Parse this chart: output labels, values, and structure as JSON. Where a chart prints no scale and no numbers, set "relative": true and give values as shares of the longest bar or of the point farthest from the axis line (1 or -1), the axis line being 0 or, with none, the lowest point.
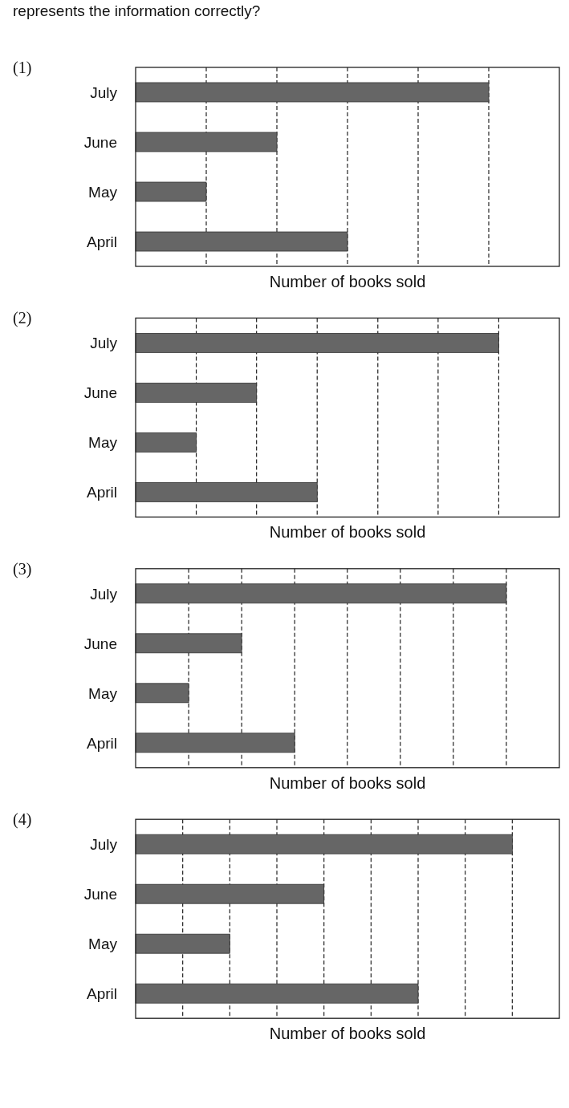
{
  "chart_data": [
    {
      "type": "bar",
      "orientation": "horizontal",
      "relative": true,
      "title": "(1)",
      "annotations": [
        "represents the information correctly?"
      ],
      "xlabel": "Number of books sold",
      "categories": [
        "July",
        "June",
        "May",
        "April"
      ],
      "values": [
        1,
        0.4,
        0.2,
        0.6
      ],
      "color": "#666666",
      "xlim": [
        0,
        1.2
      ],
      "ref_lines": [
        {
          "axis": "x",
          "value": 0.2,
          "line_style": "dashed",
          "color": "#222222"
        },
        {
          "axis": "x",
          "value": 0.4,
          "line_style": "dashed",
          "color": "#222222"
        },
        {
          "axis": "x",
          "value": 0.6,
          "line_style": "dashed",
          "color": "#222222"
        },
        {
          "axis": "x",
          "value": 0.8,
          "line_style": "dashed",
          "color": "#222222"
        },
        {
          "axis": "x",
          "value": 1,
          "line_style": "dashed",
          "color": "#222222"
        }
      ],
      "tick_labels": "y"
    },
    {
      "type": "bar",
      "orientation": "horizontal",
      "relative": true,
      "title": "(2)",
      "xlabel": "Number of books sold",
      "categories": [
        "July",
        "June",
        "May",
        "April"
      ],
      "values": [
        1,
        0.333,
        0.167,
        0.5
      ],
      "color": "#666666",
      "xlim": [
        0,
        1.167
      ],
      "ref_lines": [
        {
          "axis": "x",
          "value": 0.167,
          "line_style": "dashed",
          "color": "#222222"
        },
        {
          "axis": "x",
          "value": 0.333,
          "line_style": "dashed",
          "color": "#222222"
        },
        {
          "axis": "x",
          "value": 0.5,
          "line_style": "dashed",
          "color": "#222222"
        },
        {
          "axis": "x",
          "value": 0.667,
          "line_style": "dashed",
          "color": "#222222"
        },
        {
          "axis": "x",
          "value": 0.833,
          "line_style": "dashed",
          "color": "#222222"
        },
        {
          "axis": "x",
          "value": 1,
          "line_style": "dashed",
          "color": "#222222"
        }
      ],
      "tick_labels": "y"
    },
    {
      "type": "bar",
      "orientation": "horizontal",
      "relative": true,
      "title": "(3)",
      "xlabel": "Number of books sold",
      "categories": [
        "July",
        "June",
        "May",
        "April"
      ],
      "values": [
        1,
        0.286,
        0.143,
        0.429
      ],
      "color": "#666666",
      "xlim": [
        0,
        1.143
      ],
      "ref_lines": [
        {
          "axis": "x",
          "value": 0.143,
          "line_style": "dashed",
          "color": "#222222"
        },
        {
          "axis": "x",
          "value": 0.286,
          "line_style": "dashed",
          "color": "#222222"
        },
        {
          "axis": "x",
          "value": 0.429,
          "line_style": "dashed",
          "color": "#222222"
        },
        {
          "axis": "x",
          "value": 0.571,
          "line_style": "dashed",
          "color": "#222222"
        },
        {
          "axis": "x",
          "value": 0.714,
          "line_style": "dashed",
          "color": "#222222"
        },
        {
          "axis": "x",
          "value": 0.857,
          "line_style": "dashed",
          "color": "#222222"
        },
        {
          "axis": "x",
          "value": 1,
          "line_style": "dashed",
          "color": "#222222"
        }
      ],
      "tick_labels": "y"
    },
    {
      "type": "bar",
      "orientation": "horizontal",
      "relative": true,
      "title": "(4)",
      "xlabel": "Number of books sold",
      "categories": [
        "July",
        "June",
        "May",
        "April"
      ],
      "values": [
        1,
        0.5,
        0.25,
        0.75
      ],
      "color": "#666666",
      "xlim": [
        0,
        1.125
      ],
      "ref_lines": [
        {
          "axis": "x",
          "value": 0.125,
          "line_style": "dashed",
          "color": "#222222"
        },
        {
          "axis": "x",
          "value": 0.25,
          "line_style": "dashed",
          "color": "#222222"
        },
        {
          "axis": "x",
          "value": 0.375,
          "line_style": "dashed",
          "color": "#222222"
        },
        {
          "axis": "x",
          "value": 0.5,
          "line_style": "dashed",
          "color": "#222222"
        },
        {
          "axis": "x",
          "value": 0.625,
          "line_style": "dashed",
          "color": "#222222"
        },
        {
          "axis": "x",
          "value": 0.75,
          "line_style": "dashed",
          "color": "#222222"
        },
        {
          "axis": "x",
          "value": 0.875,
          "line_style": "dashed",
          "color": "#222222"
        },
        {
          "axis": "x",
          "value": 1,
          "line_style": "dashed",
          "color": "#222222"
        }
      ],
      "tick_labels": "y"
    }
  ]
}
